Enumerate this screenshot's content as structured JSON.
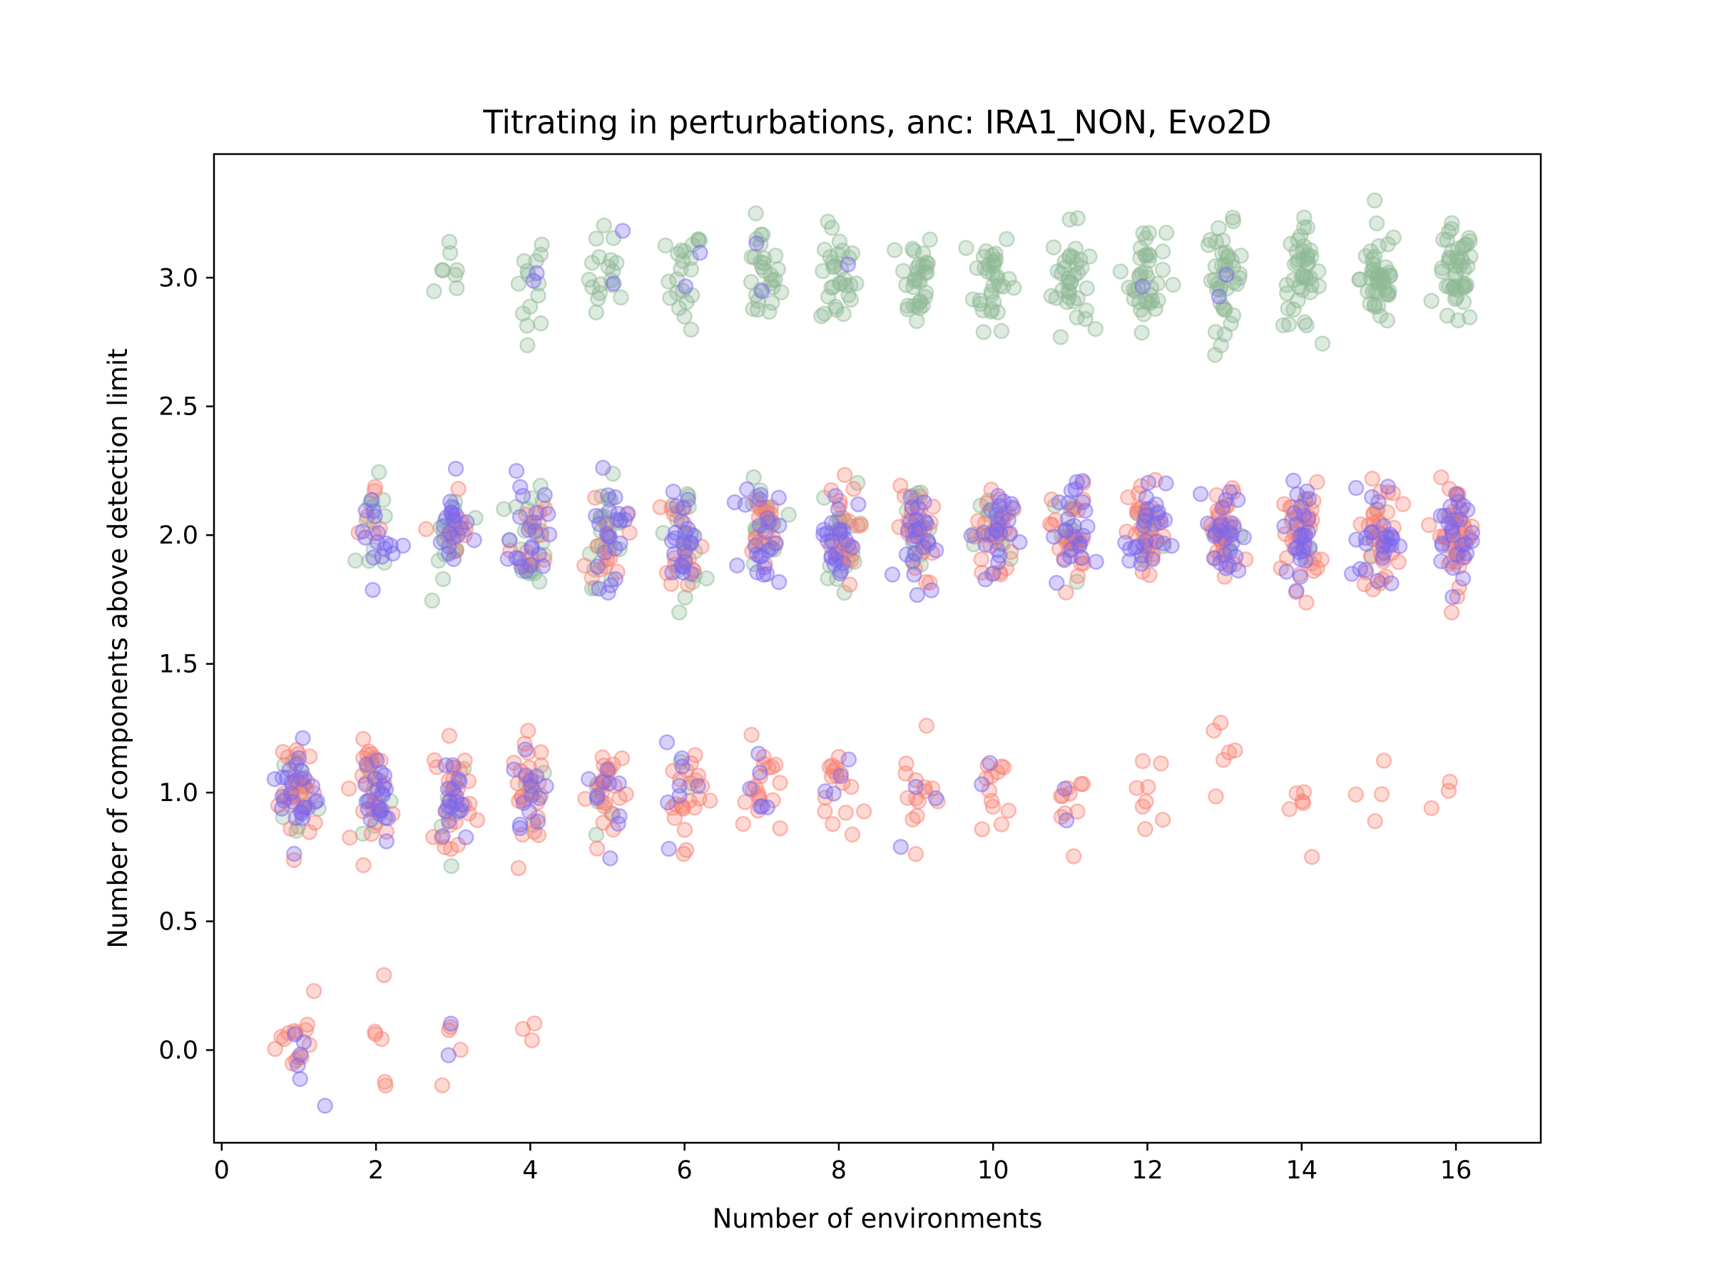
{
  "chart_data": {
    "type": "scatter",
    "title": "Titrating in perturbations, anc: IRA1_NON, Evo2D",
    "xlabel": "Number of environments",
    "ylabel": "Number of components above detection limit",
    "xlim": [
      -0.1,
      17.1
    ],
    "ylim": [
      -0.36,
      3.48
    ],
    "xticks": [
      0,
      2,
      4,
      6,
      8,
      10,
      12,
      14,
      16
    ],
    "yticks": [
      0.0,
      0.5,
      1.0,
      1.5,
      2.0,
      2.5,
      3.0
    ],
    "ytick_labels": [
      "0.0",
      "0.5",
      "1.0",
      "1.5",
      "2.0",
      "2.5",
      "3.0"
    ],
    "grid": false,
    "legend": "none",
    "jitter": {
      "x_sd": 0.12,
      "y_sd": 0.1
    },
    "series": [
      {
        "color": "#8fb996",
        "alpha": 0.3,
        "points": {
          "y3": [
            0,
            0,
            8,
            14,
            18,
            22,
            28,
            30,
            32,
            34,
            36,
            38,
            40,
            42,
            44,
            46
          ],
          "y2": [
            0,
            12,
            20,
            24,
            24,
            22,
            20,
            18,
            16,
            14,
            10,
            8,
            6,
            4,
            2,
            2
          ],
          "y1": [
            12,
            8,
            6,
            6,
            4,
            2,
            0,
            0,
            0,
            0,
            0,
            0,
            0,
            0,
            0,
            0
          ]
        }
      },
      {
        "color": "#fa8072",
        "alpha": 0.3,
        "points": {
          "y2": [
            0,
            6,
            10,
            12,
            14,
            16,
            18,
            22,
            24,
            26,
            28,
            30,
            32,
            34,
            36,
            40
          ],
          "y1": [
            30,
            30,
            28,
            26,
            24,
            22,
            18,
            16,
            14,
            12,
            10,
            8,
            6,
            6,
            4,
            3
          ],
          "y0": [
            14,
            6,
            4,
            3,
            0,
            0,
            0,
            0,
            0,
            0,
            0,
            0,
            0,
            0,
            0,
            0
          ]
        }
      },
      {
        "color": "#7b68ee",
        "alpha": 0.3,
        "points": {
          "y3": [
            0,
            0,
            0,
            2,
            2,
            2,
            2,
            1,
            0,
            0,
            0,
            1,
            2,
            0,
            0,
            0
          ],
          "y2": [
            0,
            16,
            20,
            22,
            22,
            22,
            24,
            24,
            24,
            24,
            24,
            26,
            26,
            26,
            26,
            26
          ],
          "y1": [
            26,
            22,
            18,
            14,
            10,
            8,
            6,
            4,
            3,
            2,
            2,
            0,
            0,
            0,
            0,
            0
          ],
          "y0": [
            6,
            0,
            2,
            0,
            0,
            0,
            0,
            0,
            0,
            0,
            0,
            0,
            0,
            0,
            0,
            0
          ]
        }
      }
    ]
  }
}
